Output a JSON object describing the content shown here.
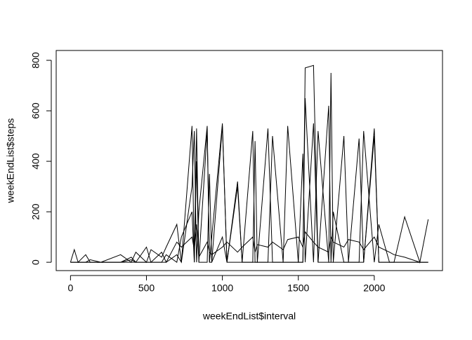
{
  "chart_data": {
    "type": "line",
    "xlabel": "weekEndList$interval",
    "ylabel": "weekEndList$steps",
    "x": [
      0,
      25,
      50,
      100,
      130,
      200,
      330,
      400,
      430,
      500,
      530,
      600,
      630,
      700,
      730,
      800,
      815,
      830,
      845,
      900,
      915,
      930,
      1000,
      1030,
      1100,
      1130,
      1200,
      1215,
      1230,
      1300,
      1330,
      1400,
      1430,
      1500,
      1530,
      1545,
      1600,
      1630,
      1700,
      1715,
      1730,
      1800,
      1830,
      1900,
      1930,
      2000,
      2030,
      2100,
      2130,
      2200,
      2300,
      2355
    ],
    "series": [
      {
        "color": "#000000",
        "values": [
          0,
          0,
          0,
          0,
          0,
          0,
          0,
          0,
          0,
          0,
          0,
          0,
          0,
          30,
          0,
          540,
          0,
          530,
          0,
          520,
          0,
          0,
          540,
          0,
          0,
          0,
          0,
          0,
          0,
          0,
          0,
          0,
          0,
          0,
          0,
          770,
          780,
          0,
          0,
          750,
          0,
          0,
          0,
          0,
          0,
          530,
          0,
          0,
          0,
          0,
          0,
          0
        ]
      },
      {
        "color": "#000000",
        "values": [
          0,
          50,
          0,
          30,
          0,
          0,
          30,
          0,
          40,
          0,
          50,
          20,
          60,
          150,
          0,
          300,
          520,
          0,
          200,
          540,
          0,
          100,
          550,
          0,
          300,
          0,
          520,
          0,
          0,
          530,
          0,
          0,
          540,
          0,
          0,
          650,
          0,
          520,
          0,
          0,
          0,
          500,
          0,
          490,
          0,
          500,
          0,
          0,
          0,
          0,
          0,
          0
        ]
      },
      {
        "color": "#000000",
        "values": [
          0,
          0,
          0,
          0,
          10,
          0,
          0,
          20,
          0,
          0,
          0,
          0,
          30,
          0,
          100,
          200,
          0,
          400,
          0,
          0,
          350,
          0,
          100,
          0,
          320,
          0,
          0,
          480,
          0,
          0,
          500,
          0,
          0,
          0,
          430,
          0,
          550,
          0,
          620,
          0,
          200,
          0,
          0,
          0,
          520,
          0,
          150,
          0,
          0,
          180,
          0,
          170
        ]
      },
      {
        "color": "#000000",
        "values": [
          0,
          0,
          0,
          0,
          0,
          0,
          0,
          10,
          0,
          60,
          0,
          40,
          0,
          80,
          60,
          100,
          50,
          150,
          20,
          80,
          40,
          30,
          60,
          80,
          40,
          60,
          100,
          40,
          70,
          60,
          80,
          50,
          90,
          100,
          60,
          120,
          80,
          60,
          40,
          100,
          80,
          60,
          90,
          80,
          50,
          100,
          60,
          40,
          30,
          20,
          0,
          0
        ]
      }
    ],
    "xlim": [
      -94.2,
      2449.2
    ],
    "xticks": [
      0,
      500,
      1000,
      1500,
      2000
    ],
    "ylim": [
      -33,
      839
    ],
    "yticks": [
      0,
      200,
      400,
      600,
      800
    ],
    "grid": false
  }
}
